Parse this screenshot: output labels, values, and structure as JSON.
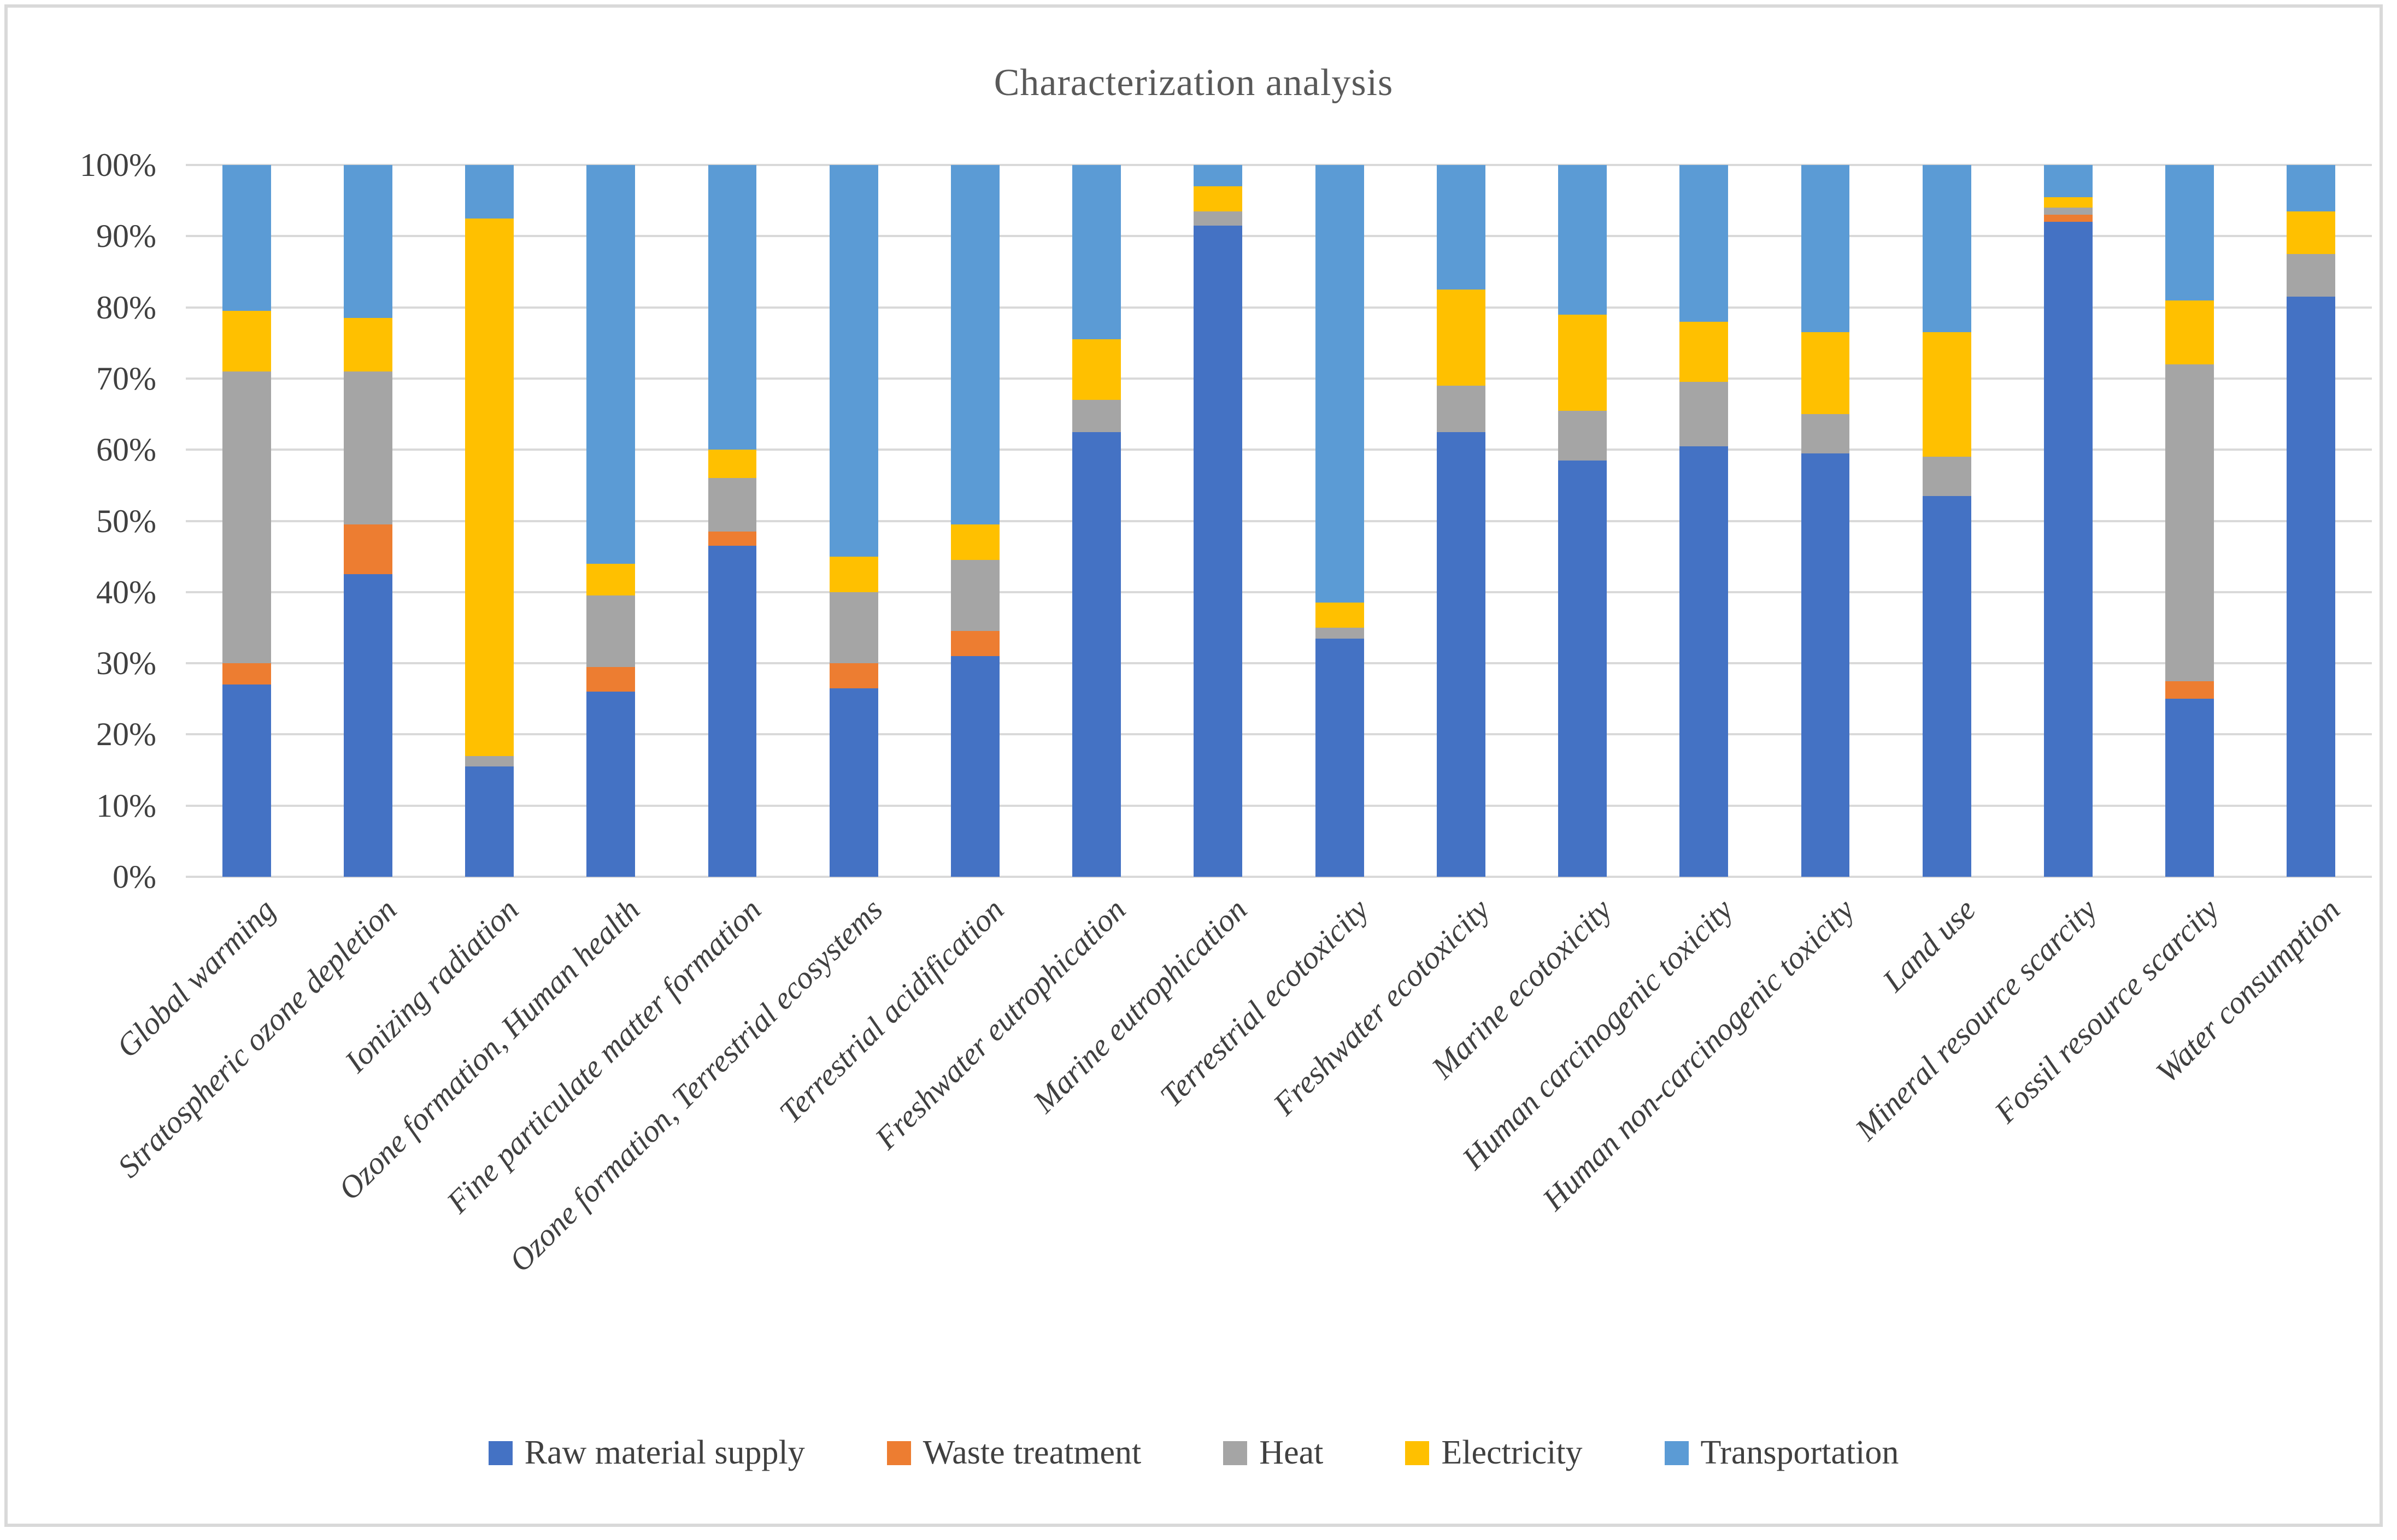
{
  "figure": {
    "title": "Characterization analysis"
  },
  "chart_data": {
    "type": "bar",
    "stacked": true,
    "percent_stacked": true,
    "title": "Characterization analysis",
    "grid": true,
    "legend_position": "bottom",
    "y_axis": {
      "min": 0,
      "max": 100,
      "unit": "%",
      "tick_labels_top_to_bottom": [
        "100%",
        "90%",
        "80%",
        "70%",
        "60%",
        "50%",
        "40%",
        "30%",
        "20%",
        "10%",
        "0%"
      ]
    },
    "categories": [
      "Global warming",
      "Stratospheric ozone depletion",
      "Ionizing radiation",
      "Ozone formation, Human health",
      "Fine particulate matter formation",
      "Ozone formation, Terrestrial ecosystems",
      "Terrestrial acidification",
      "Freshwater eutrophication",
      "Marine eutrophication",
      "Terrestrial ecotoxicity",
      "Freshwater ecotoxicity",
      "Marine ecotoxicity",
      "Human carcinogenic toxicity",
      "Human non-carcinogenic toxicity",
      "Land use",
      "Mineral resource scarcity",
      "Fossil resource scarcity",
      "Water consumption"
    ],
    "series": [
      {
        "name": "Raw material supply",
        "color": "#4472C4",
        "values": [
          27,
          42.5,
          15.5,
          26,
          46.5,
          26.5,
          31,
          62.5,
          91.5,
          33.5,
          62.5,
          58.5,
          60.5,
          59.5,
          53.5,
          92,
          25,
          81.5
        ]
      },
      {
        "name": "Waste treatment",
        "color": "#ED7D31",
        "values": [
          3,
          7,
          0,
          3.5,
          2,
          3.5,
          3.5,
          0,
          0,
          0,
          0,
          0,
          0,
          0,
          0,
          1,
          2.5,
          0
        ]
      },
      {
        "name": "Heat",
        "color": "#A5A5A5",
        "values": [
          41,
          21.5,
          1.5,
          10,
          7.5,
          10,
          10,
          4.5,
          2,
          1.5,
          6.5,
          7,
          9,
          5.5,
          5.5,
          1,
          44.5,
          6
        ]
      },
      {
        "name": "Electricity",
        "color": "#FFC000",
        "values": [
          8.5,
          7.5,
          75.5,
          4.5,
          4,
          5,
          5,
          8.5,
          3.5,
          3.5,
          13.5,
          13.5,
          8.5,
          11.5,
          17.5,
          1.5,
          9,
          6
        ]
      },
      {
        "name": "Transportation",
        "color": "#5B9BD5",
        "values": [
          20.5,
          21.5,
          7.5,
          56,
          40,
          55,
          50.5,
          24.5,
          3,
          61.5,
          17.5,
          21,
          22,
          23.5,
          23.5,
          4.5,
          19,
          6.5
        ]
      }
    ]
  },
  "style_colors": {
    "gridline": "#D9D9D9",
    "frame_border": "#D9D9D9",
    "title_text": "#595959",
    "axis_text": "#404040"
  }
}
